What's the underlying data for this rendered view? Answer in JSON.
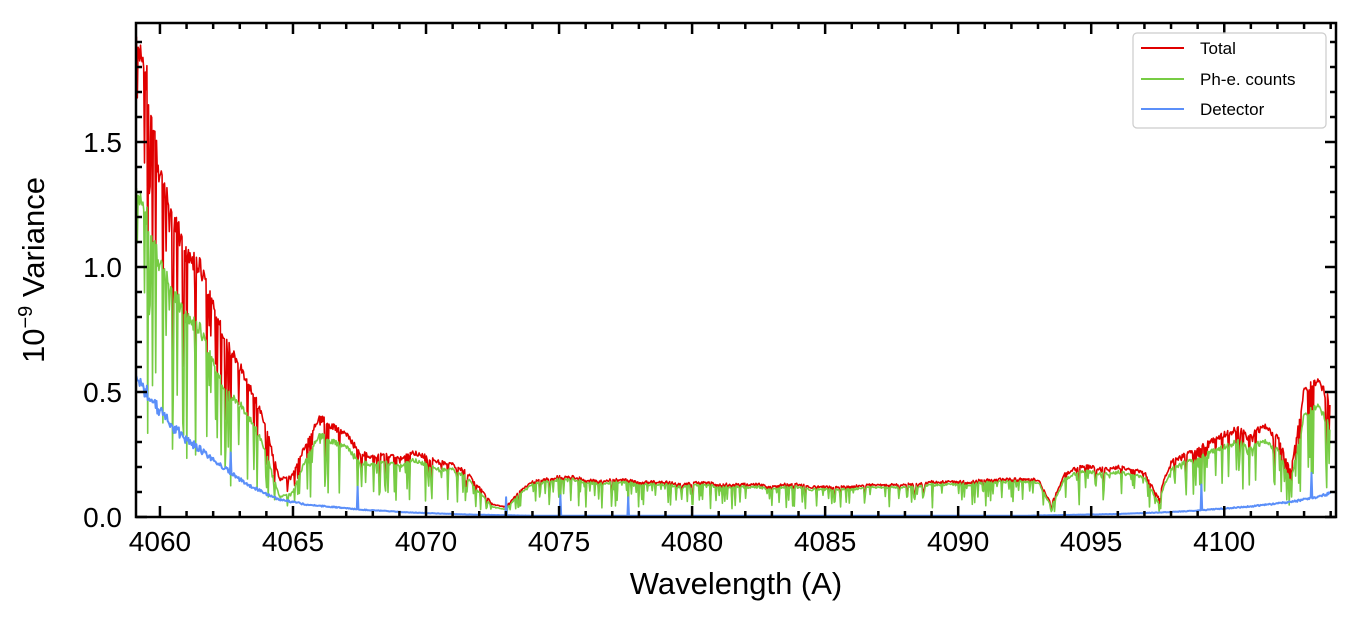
{
  "chart_data": {
    "type": "line",
    "title": "",
    "xlabel": "Wavelength (A)",
    "ylabel_base": "10",
    "ylabel_exp": "−9",
    "ylabel_rest": " Variance",
    "xlim": [
      4059.1,
      4104.2
    ],
    "ylim": [
      0,
      1.976
    ],
    "x_start": 4059.0,
    "x_step": 0.5,
    "xticks": [
      4060,
      4065,
      4070,
      4075,
      4080,
      4085,
      4090,
      4095,
      4100
    ],
    "xtick_labels": [
      "4060",
      "4065",
      "4070",
      "4075",
      "4080",
      "4085",
      "4090",
      "4095",
      "4100"
    ],
    "x_minor_step": 1,
    "yticks": [
      0,
      0.5,
      1.0,
      1.5
    ],
    "ytick_labels": [
      "0.0",
      "0.5",
      "1.0",
      "1.5"
    ],
    "y_minor_step": 0.1,
    "legend_position": "top-right",
    "grid": false,
    "series": [
      {
        "name": "Total",
        "color": "#e00000",
        "values": [
          1.9,
          1.75,
          1.35,
          1.2,
          1.05,
          1.0,
          0.85,
          0.7,
          0.6,
          0.5,
          0.35,
          0.15,
          0.17,
          0.3,
          0.4,
          0.36,
          0.33,
          0.26,
          0.24,
          0.25,
          0.23,
          0.26,
          0.24,
          0.22,
          0.21,
          0.18,
          0.12,
          0.05,
          0.04,
          0.1,
          0.14,
          0.15,
          0.16,
          0.16,
          0.15,
          0.14,
          0.15,
          0.15,
          0.14,
          0.14,
          0.14,
          0.13,
          0.14,
          0.14,
          0.13,
          0.13,
          0.13,
          0.13,
          0.12,
          0.13,
          0.13,
          0.12,
          0.12,
          0.12,
          0.12,
          0.13,
          0.13,
          0.13,
          0.13,
          0.13,
          0.14,
          0.14,
          0.14,
          0.14,
          0.15,
          0.15,
          0.15,
          0.15,
          0.15,
          0.05,
          0.17,
          0.2,
          0.2,
          0.19,
          0.2,
          0.19,
          0.18,
          0.08,
          0.22,
          0.25,
          0.27,
          0.3,
          0.33,
          0.35,
          0.33,
          0.36,
          0.32,
          0.18,
          0.5,
          0.55,
          0.45
        ]
      },
      {
        "name": "Ph-e. counts",
        "color": "#77cc44",
        "values": [
          1.3,
          1.2,
          1.0,
          0.9,
          0.8,
          0.75,
          0.62,
          0.5,
          0.45,
          0.38,
          0.25,
          0.08,
          0.1,
          0.24,
          0.33,
          0.3,
          0.28,
          0.22,
          0.21,
          0.22,
          0.2,
          0.23,
          0.21,
          0.19,
          0.19,
          0.16,
          0.1,
          0.04,
          0.03,
          0.09,
          0.13,
          0.14,
          0.15,
          0.15,
          0.14,
          0.13,
          0.14,
          0.14,
          0.13,
          0.13,
          0.13,
          0.12,
          0.13,
          0.13,
          0.12,
          0.12,
          0.12,
          0.12,
          0.11,
          0.12,
          0.12,
          0.11,
          0.11,
          0.11,
          0.11,
          0.12,
          0.12,
          0.12,
          0.12,
          0.12,
          0.13,
          0.13,
          0.13,
          0.13,
          0.14,
          0.14,
          0.14,
          0.14,
          0.14,
          0.04,
          0.15,
          0.18,
          0.18,
          0.17,
          0.18,
          0.17,
          0.16,
          0.06,
          0.19,
          0.22,
          0.23,
          0.26,
          0.28,
          0.3,
          0.28,
          0.3,
          0.27,
          0.14,
          0.4,
          0.45,
          0.35
        ]
      },
      {
        "name": "Detector",
        "color": "#5b8ff9",
        "values": [
          0.55,
          0.5,
          0.42,
          0.36,
          0.31,
          0.27,
          0.23,
          0.19,
          0.15,
          0.12,
          0.09,
          0.07,
          0.06,
          0.05,
          0.045,
          0.04,
          0.035,
          0.03,
          0.027,
          0.024,
          0.02,
          0.018,
          0.016,
          0.014,
          0.012,
          0.01,
          0.009,
          0.008,
          0.007,
          0.006,
          0.005,
          0.005,
          0.005,
          0.005,
          0.005,
          0.005,
          0.005,
          0.005,
          0.005,
          0.005,
          0.005,
          0.005,
          0.005,
          0.005,
          0.005,
          0.005,
          0.005,
          0.005,
          0.005,
          0.005,
          0.005,
          0.005,
          0.005,
          0.005,
          0.005,
          0.005,
          0.005,
          0.005,
          0.005,
          0.005,
          0.005,
          0.005,
          0.005,
          0.005,
          0.005,
          0.005,
          0.005,
          0.005,
          0.006,
          0.007,
          0.008,
          0.009,
          0.01,
          0.011,
          0.012,
          0.014,
          0.016,
          0.018,
          0.02,
          0.023,
          0.026,
          0.03,
          0.034,
          0.038,
          0.043,
          0.048,
          0.054,
          0.06,
          0.07,
          0.08,
          0.095
        ]
      }
    ]
  }
}
